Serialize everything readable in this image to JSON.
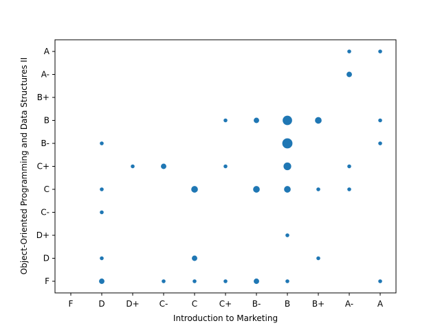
{
  "chart_data": {
    "type": "scatter",
    "xlabel": "Introduction to Marketing",
    "ylabel": "Object-Oriented Programming and Data Structures II",
    "x_categories": [
      "F",
      "D",
      "D+",
      "C-",
      "C",
      "C+",
      "B-",
      "B",
      "B+",
      "A-",
      "A"
    ],
    "y_categories": [
      "F",
      "D",
      "D+",
      "C-",
      "C",
      "C+",
      "B-",
      "B",
      "B+",
      "A-",
      "A"
    ],
    "grid": false,
    "marker_color": "#1f77b4",
    "points": [
      {
        "x": "D",
        "y": "B-",
        "count": 1
      },
      {
        "x": "D",
        "y": "C",
        "count": 1
      },
      {
        "x": "D",
        "y": "C-",
        "count": 1
      },
      {
        "x": "D",
        "y": "D",
        "count": 1
      },
      {
        "x": "D",
        "y": "F",
        "count": 2
      },
      {
        "x": "D+",
        "y": "C+",
        "count": 1
      },
      {
        "x": "C-",
        "y": "C+",
        "count": 2
      },
      {
        "x": "C-",
        "y": "F",
        "count": 1
      },
      {
        "x": "C",
        "y": "C",
        "count": 3
      },
      {
        "x": "C",
        "y": "D",
        "count": 2
      },
      {
        "x": "C",
        "y": "F",
        "count": 1
      },
      {
        "x": "C+",
        "y": "B",
        "count": 1
      },
      {
        "x": "C+",
        "y": "C+",
        "count": 1
      },
      {
        "x": "C+",
        "y": "F",
        "count": 1
      },
      {
        "x": "B-",
        "y": "B",
        "count": 2
      },
      {
        "x": "B-",
        "y": "C",
        "count": 3
      },
      {
        "x": "B-",
        "y": "F",
        "count": 2
      },
      {
        "x": "B",
        "y": "B",
        "count": 6
      },
      {
        "x": "B",
        "y": "B-",
        "count": 7
      },
      {
        "x": "B",
        "y": "C+",
        "count": 4
      },
      {
        "x": "B",
        "y": "C",
        "count": 3
      },
      {
        "x": "B",
        "y": "D+",
        "count": 1
      },
      {
        "x": "B",
        "y": "F",
        "count": 1
      },
      {
        "x": "B+",
        "y": "B",
        "count": 3
      },
      {
        "x": "B+",
        "y": "C",
        "count": 1
      },
      {
        "x": "B+",
        "y": "D",
        "count": 1
      },
      {
        "x": "A-",
        "y": "A",
        "count": 1
      },
      {
        "x": "A-",
        "y": "A-",
        "count": 2
      },
      {
        "x": "A-",
        "y": "C+",
        "count": 1
      },
      {
        "x": "A-",
        "y": "C",
        "count": 1
      },
      {
        "x": "A",
        "y": "A",
        "count": 1
      },
      {
        "x": "A",
        "y": "B",
        "count": 1
      },
      {
        "x": "A",
        "y": "B-",
        "count": 1
      },
      {
        "x": "A",
        "y": "F",
        "count": 1
      }
    ]
  }
}
